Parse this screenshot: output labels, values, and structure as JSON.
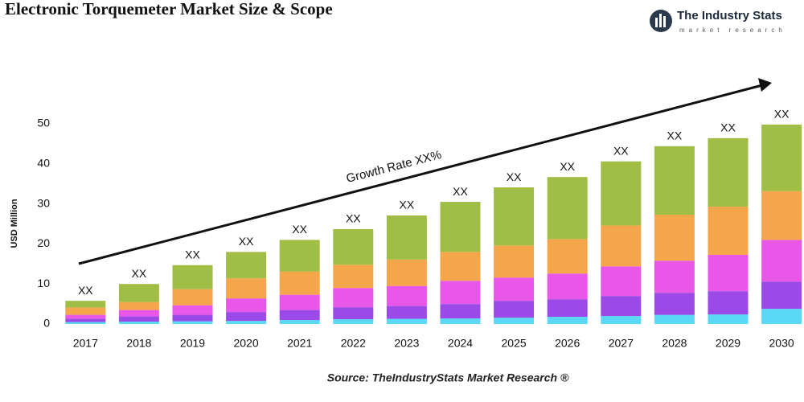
{
  "chart_data": {
    "type": "stacked_bar",
    "title": "Electronic Torquemeter Market Size & Scope",
    "logo": {
      "name": "The Industry Stats",
      "tagline": "market research"
    },
    "y_label": "USD Million",
    "annotation": "Growth Rate XX%",
    "source": "Source: TheIndustryStats Market Research ®",
    "categories": [
      "2017",
      "2018",
      "2019",
      "2020",
      "2021",
      "2022",
      "2023",
      "2024",
      "2025",
      "2026",
      "2027",
      "2028",
      "2029",
      "2030"
    ],
    "series": [
      {
        "color": "#5ad8f5",
        "values": [
          0.5,
          0.6,
          0.7,
          0.8,
          1.0,
          1.2,
          1.3,
          1.4,
          1.6,
          1.8,
          2.0,
          2.3,
          2.4,
          3.8
        ]
      },
      {
        "color": "#9b4ae8",
        "values": [
          0.8,
          1.3,
          1.6,
          2.2,
          2.5,
          3.0,
          3.2,
          3.6,
          4.2,
          4.4,
          5.0,
          5.5,
          5.8,
          6.8
        ]
      },
      {
        "color": "#e857e8",
        "values": [
          1.0,
          1.6,
          2.4,
          3.4,
          3.8,
          4.8,
          5.0,
          5.8,
          5.8,
          6.4,
          7.4,
          8.0,
          9.1,
          10.4
        ]
      },
      {
        "color": "#f5a54a",
        "values": [
          1.8,
          2.0,
          4.0,
          5.0,
          5.8,
          5.8,
          6.6,
          7.2,
          8.0,
          8.6,
          10.2,
          11.5,
          12.0,
          12.2
        ]
      },
      {
        "color": "#a0bd45",
        "values": [
          1.7,
          4.5,
          6.0,
          6.6,
          7.9,
          8.9,
          11.0,
          12.5,
          14.5,
          15.5,
          16.0,
          17.1,
          17.1,
          16.6
        ]
      }
    ],
    "total_labels": [
      "XX",
      "XX",
      "XX",
      "XX",
      "XX",
      "XX",
      "XX",
      "XX",
      "XX",
      "XX",
      "XX",
      "XX",
      "XX",
      "XX"
    ],
    "ylim": [
      -2,
      55
    ],
    "yticks": [
      0,
      10,
      20,
      30,
      40,
      50
    ]
  }
}
